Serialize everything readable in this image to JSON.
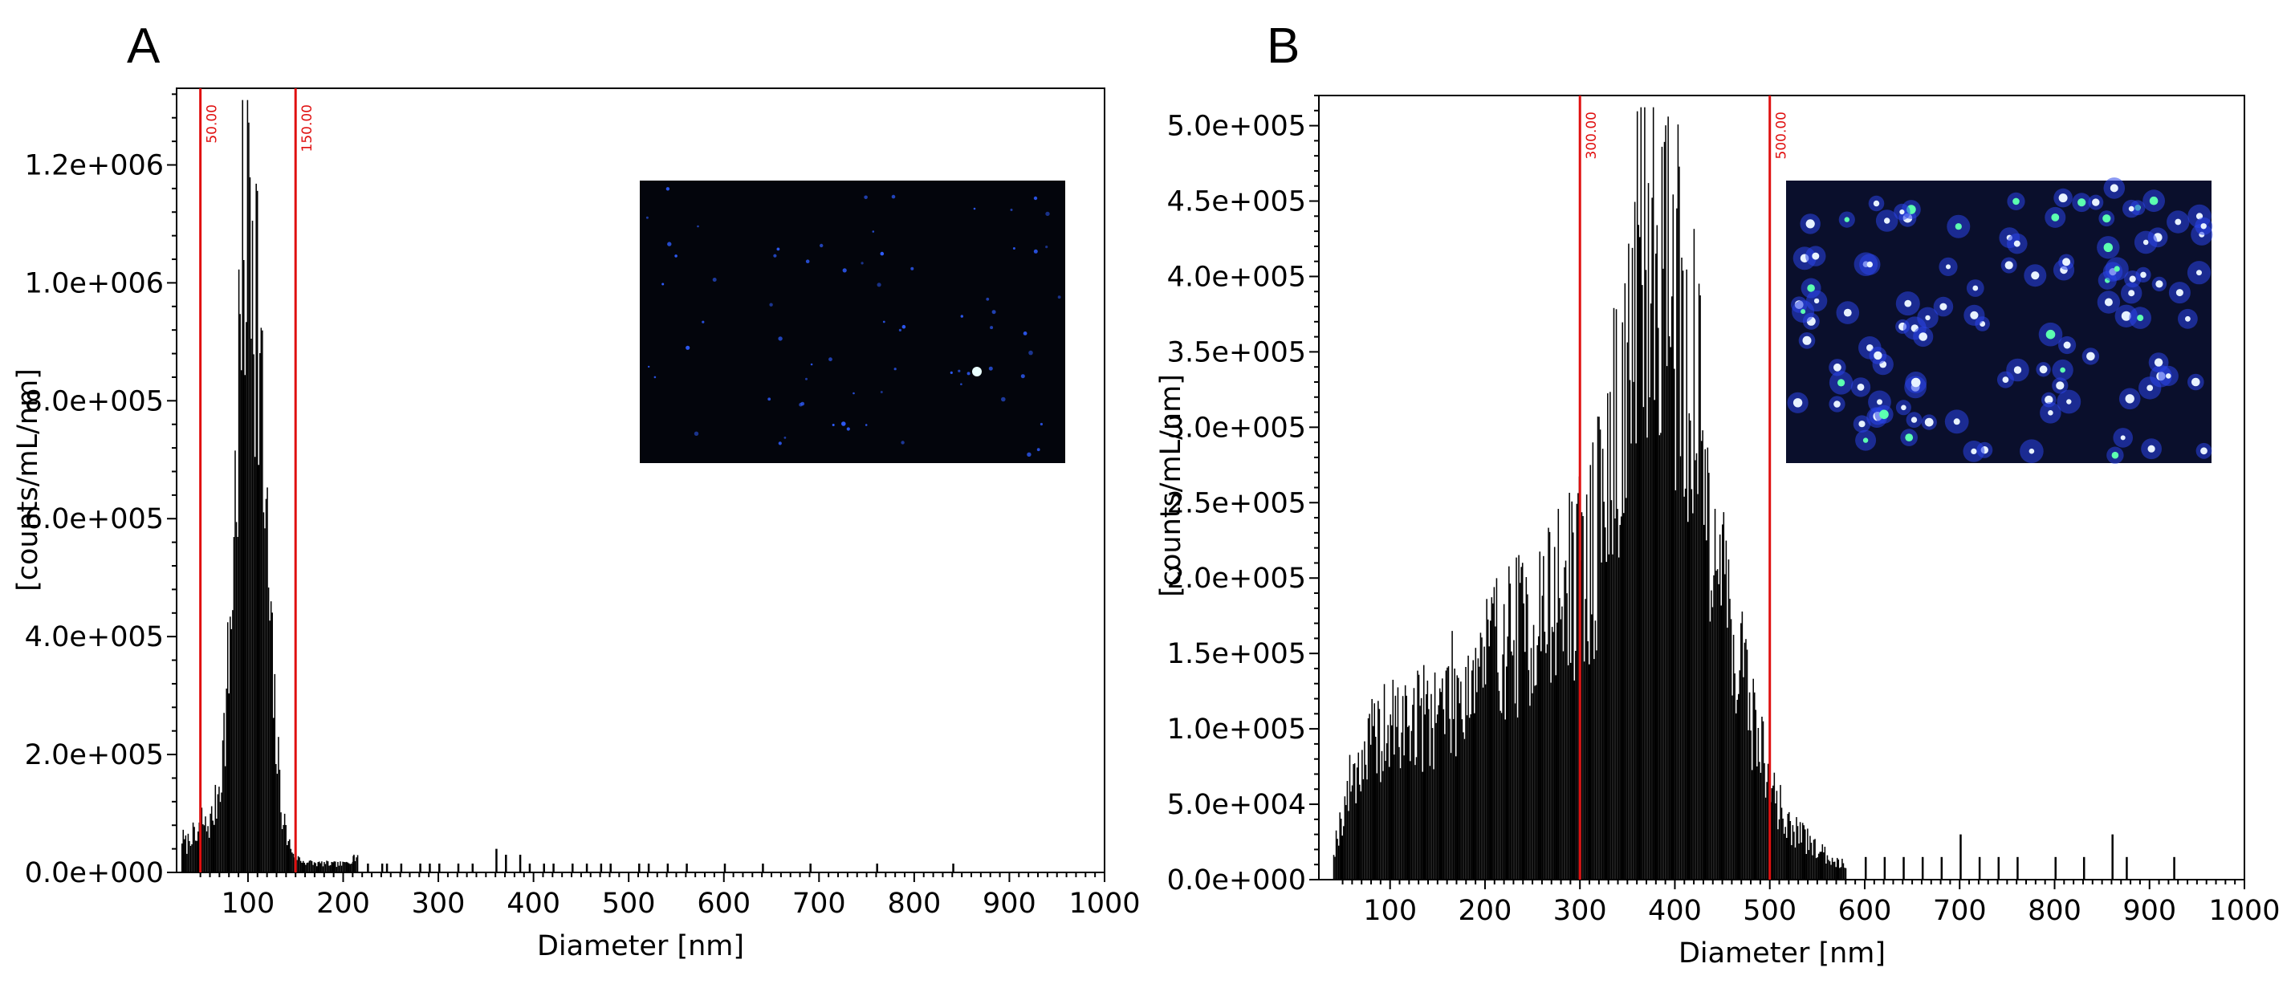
{
  "chart_data": [
    {
      "type": "bar",
      "panel_label": "A",
      "title": "",
      "xlabel": "Diameter [nm]",
      "ylabel": "[counts/mL/nm]",
      "xlim": [
        25,
        1000
      ],
      "ylim": [
        0,
        1330000
      ],
      "x_ticks": [
        100,
        200,
        300,
        400,
        500,
        600,
        700,
        800,
        900,
        1000
      ],
      "x_tick_labels": [
        "100",
        "200",
        "300",
        "400",
        "500",
        "600",
        "700",
        "800",
        "900",
        "1000"
      ],
      "y_ticks": [
        0,
        200000,
        400000,
        600000,
        800000,
        1000000,
        1200000
      ],
      "y_tick_labels": [
        "0.0e+000",
        "2.0e+005",
        "4.0e+005",
        "6.0e+005",
        "8.0e+005",
        "1.0e+006",
        "1.2e+006"
      ],
      "grid": false,
      "markers": [
        {
          "x": 50,
          "label": "50.00",
          "color": "#e01010"
        },
        {
          "x": 150,
          "label": "150.00",
          "color": "#e01010"
        }
      ],
      "bin_width_nm": 1.3,
      "x_centers": [
        30,
        35,
        40,
        45,
        50,
        55,
        60,
        65,
        70,
        75,
        80,
        85,
        90,
        95,
        100,
        105,
        110,
        115,
        120,
        125,
        130,
        135,
        140,
        145,
        150,
        155,
        160,
        170,
        180,
        190,
        200,
        215
      ],
      "values": [
        60000,
        45000,
        70000,
        50000,
        95000,
        75000,
        85000,
        110000,
        160000,
        240000,
        380000,
        580000,
        820000,
        1050000,
        1200000,
        1150000,
        950000,
        700000,
        520000,
        330000,
        200000,
        110000,
        60000,
        40000,
        28000,
        20000,
        18000,
        15000,
        15000,
        14000,
        14000,
        30000
      ],
      "sparse_x": [
        210,
        225,
        240,
        245,
        260,
        280,
        290,
        300,
        320,
        335,
        360,
        370,
        385,
        395,
        410,
        420,
        440,
        455,
        470,
        480,
        510,
        520,
        540,
        560,
        600,
        640,
        690,
        760,
        840
      ],
      "sparse_values": [
        28000,
        15000,
        15000,
        15000,
        15000,
        15000,
        15000,
        15000,
        15000,
        15000,
        40000,
        30000,
        30000,
        15000,
        15000,
        15000,
        15000,
        15000,
        15000,
        15000,
        15000,
        15000,
        15000,
        15000,
        15000,
        15000,
        15000,
        15000,
        15000
      ],
      "inset": {
        "description_free": true,
        "background": "#03050c",
        "dot_color": "#2f5dff"
      }
    },
    {
      "type": "bar",
      "panel_label": "B",
      "title": "",
      "xlabel": "Diameter [nm]",
      "ylabel": "[counts/mL/nm]",
      "xlim": [
        25,
        1000
      ],
      "ylim": [
        0,
        520000
      ],
      "x_ticks": [
        100,
        200,
        300,
        400,
        500,
        600,
        700,
        800,
        900,
        1000
      ],
      "x_tick_labels": [
        "100",
        "200",
        "300",
        "400",
        "500",
        "600",
        "700",
        "800",
        "900",
        "1000"
      ],
      "y_ticks": [
        0,
        50000,
        100000,
        150000,
        200000,
        250000,
        300000,
        350000,
        400000,
        450000,
        500000
      ],
      "y_tick_labels": [
        "0.0e+000",
        "5.0e+004",
        "1.0e+005",
        "1.5e+005",
        "2.0e+005",
        "2.5e+005",
        "3.0e+005",
        "3.5e+005",
        "4.0e+005",
        "4.5e+005",
        "5.0e+005"
      ],
      "grid": false,
      "markers": [
        {
          "x": 300,
          "label": "300.00",
          "color": "#e01010"
        },
        {
          "x": 500,
          "label": "500.00",
          "color": "#e01010"
        }
      ],
      "bin_width_nm": 1.3,
      "x_centers": [
        40,
        60,
        80,
        100,
        120,
        140,
        160,
        180,
        200,
        220,
        240,
        260,
        280,
        300,
        310,
        320,
        330,
        340,
        350,
        360,
        370,
        380,
        390,
        400,
        410,
        420,
        430,
        440,
        450,
        460,
        470,
        480,
        490,
        500,
        520,
        540,
        560,
        580
      ],
      "values": [
        20000,
        70000,
        90000,
        100000,
        105000,
        110000,
        120000,
        130000,
        150000,
        160000,
        165000,
        175000,
        190000,
        200000,
        210000,
        240000,
        270000,
        300000,
        340000,
        380000,
        420000,
        430000,
        420000,
        390000,
        350000,
        320000,
        280000,
        240000,
        200000,
        170000,
        140000,
        110000,
        90000,
        60000,
        35000,
        25000,
        15000,
        10000
      ],
      "sparse_x": [
        600,
        620,
        640,
        660,
        680,
        700,
        720,
        740,
        760,
        800,
        830,
        860,
        875,
        925
      ],
      "sparse_values": [
        15000,
        15000,
        15000,
        15000,
        15000,
        30000,
        15000,
        15000,
        15000,
        15000,
        15000,
        30000,
        15000,
        15000
      ],
      "inset": {
        "description_free": true,
        "background": "#0a0f2c",
        "dot_color": "#e8f2ff"
      }
    }
  ]
}
